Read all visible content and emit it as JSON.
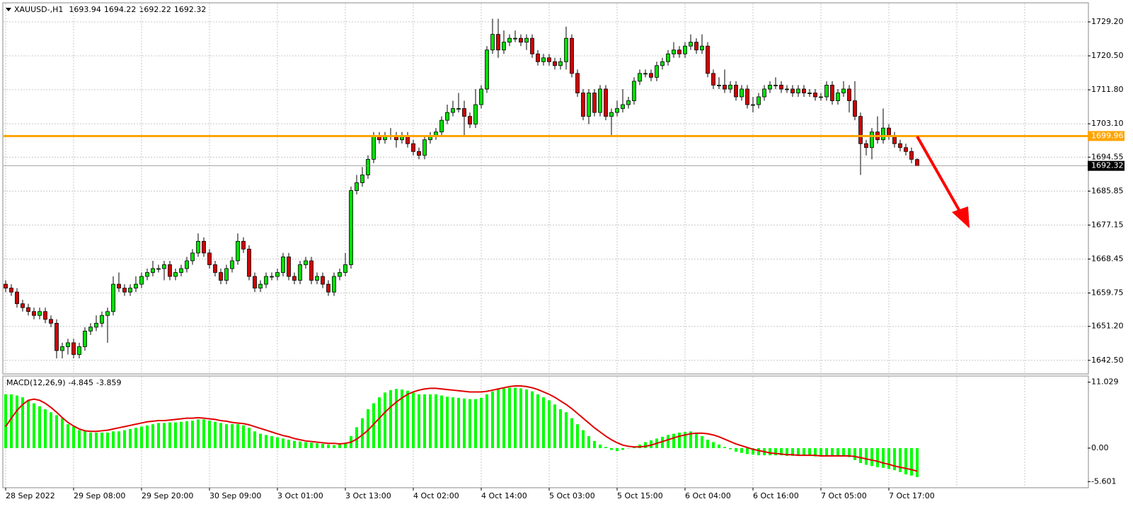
{
  "chart_data": [
    {
      "type": "candlestick",
      "symbol": "XAUUSD-,H1",
      "up_color": "#00e000",
      "down_color": "#d00000",
      "grid": true,
      "ylim": [
        1639.2,
        1733.9
      ],
      "yticks": [
        {
          "value": 1729.2,
          "label": "1729.20"
        },
        {
          "value": 1720.5,
          "label": "1720.50"
        },
        {
          "value": 1711.8,
          "label": "1711.80"
        },
        {
          "value": 1703.1,
          "label": "1703.10"
        },
        1694.55,
        1685.85,
        1677.15,
        1668.45,
        1659.75,
        {
          "value": 1651.2,
          "label": "1651.20"
        },
        {
          "value": 1642.5,
          "label": "1642.50"
        }
      ],
      "hline": {
        "value": 1699.96,
        "color": "#ffa500"
      },
      "categories": [
        "28 Sep 2022",
        null,
        null,
        null,
        null,
        null,
        null,
        null,
        null,
        null,
        null,
        null,
        "29 Sep 08:00",
        null,
        null,
        null,
        null,
        null,
        null,
        null,
        null,
        null,
        null,
        null,
        "29 Sep 20:00",
        null,
        null,
        null,
        null,
        null,
        null,
        null,
        null,
        null,
        null,
        null,
        "30 Sep 09:00",
        null,
        null,
        null,
        null,
        null,
        null,
        null,
        null,
        null,
        null,
        null,
        "3 Oct 01:00",
        null,
        null,
        null,
        null,
        null,
        null,
        null,
        null,
        null,
        null,
        null,
        "3 Oct 13:00",
        null,
        null,
        null,
        null,
        null,
        null,
        null,
        null,
        null,
        null,
        null,
        "4 Oct 02:00",
        null,
        null,
        null,
        null,
        null,
        null,
        null,
        null,
        null,
        null,
        null,
        "4 Oct 14:00",
        null,
        null,
        null,
        null,
        null,
        null,
        null,
        null,
        null,
        null,
        null,
        "5 Oct 03:00",
        null,
        null,
        null,
        null,
        null,
        null,
        null,
        null,
        null,
        null,
        null,
        "5 Oct 15:00",
        null,
        null,
        null,
        null,
        null,
        null,
        null,
        null,
        null,
        null,
        null,
        "6 Oct 04:00",
        null,
        null,
        null,
        null,
        null,
        null,
        null,
        null,
        null,
        null,
        null,
        "6 Oct 16:00",
        null,
        null,
        null,
        null,
        null,
        null,
        null,
        null,
        null,
        null,
        null,
        "7 Oct 05:00",
        null,
        null,
        null,
        null,
        null,
        null,
        null,
        null,
        null,
        null,
        null,
        "7 Oct 17:00",
        null,
        null,
        null,
        null,
        null
      ],
      "open": [
        1662,
        1661,
        1660,
        1657,
        1656,
        1655,
        1654,
        1655,
        1653,
        1652,
        1645,
        1646,
        1647,
        1644,
        1646,
        1650,
        1651,
        1652,
        1654,
        1655,
        1662,
        1661,
        1660,
        1661,
        1662,
        1664,
        1665,
        1666,
        1666,
        1667,
        1664,
        1665,
        1666,
        1668,
        1670,
        1673,
        1670,
        1667,
        1665,
        1663,
        1666,
        1668,
        1673,
        1671,
        1664,
        1661,
        1662,
        1664,
        1664,
        1665,
        1669,
        1664,
        1663,
        1667,
        1668,
        1663,
        1664,
        1662,
        1660,
        1664,
        1665,
        1667,
        1686,
        1688,
        1690,
        1694,
        1700,
        1699,
        1700,
        1700,
        1699,
        1700,
        1698,
        1696,
        1695,
        1699,
        1700,
        1701,
        1704,
        1706,
        1707,
        1707,
        1705,
        1703,
        1708,
        1712,
        1722,
        1726,
        1722,
        1724,
        1725,
        1725,
        1724,
        1725,
        1721,
        1719,
        1720,
        1719,
        1718,
        1719,
        1725,
        1716,
        1711,
        1705,
        1711,
        1706,
        1712,
        1705,
        1706,
        1707,
        1708,
        1709,
        1714,
        1716,
        1716,
        1715,
        1718,
        1719,
        1721,
        1722,
        1721,
        1723,
        1724,
        1722,
        1723,
        1716,
        1713,
        1713,
        1712,
        1713,
        1710,
        1712,
        1708,
        1708,
        1710,
        1712,
        1713,
        1713,
        1712,
        1712,
        1711,
        1712,
        1711,
        1711,
        1710,
        1710,
        1713,
        1709,
        1711,
        1712,
        1709,
        1705,
        1698,
        1697,
        1701,
        1699,
        1702,
        1700,
        1698,
        1697,
        1696,
        1693.94
      ],
      "high": [
        1663,
        1662,
        1661,
        1658,
        1657,
        1656,
        1656,
        1656,
        1654,
        1653,
        1647,
        1648,
        1648,
        1647,
        1651,
        1652,
        1654,
        1655,
        1656,
        1664,
        1665,
        1662,
        1662,
        1664,
        1665,
        1666,
        1668,
        1667,
        1668,
        1668,
        1666,
        1667,
        1669,
        1671,
        1675,
        1674,
        1671,
        1668,
        1666,
        1667,
        1669,
        1675,
        1674,
        1672,
        1665,
        1663,
        1665,
        1665,
        1666,
        1670,
        1670,
        1665,
        1668,
        1669,
        1669,
        1665,
        1665,
        1663,
        1665,
        1666,
        1670,
        1687,
        1690,
        1692,
        1695,
        1701,
        1701,
        1701,
        1702,
        1701,
        1701,
        1701,
        1699,
        1697,
        1700,
        1701,
        1702,
        1705,
        1708,
        1709,
        1711,
        1709,
        1706,
        1712,
        1713,
        1723,
        1730,
        1730,
        1727,
        1726,
        1727,
        1726,
        1726,
        1726,
        1722,
        1721,
        1721,
        1720,
        1720,
        1728,
        1726,
        1717,
        1712,
        1712,
        1712,
        1713,
        1713,
        1707,
        1709,
        1712,
        1710,
        1715,
        1717,
        1717,
        1717,
        1719,
        1720,
        1722,
        1724,
        1723,
        1724,
        1726,
        1725,
        1726,
        1724,
        1717,
        1715,
        1717,
        1714,
        1714,
        1713,
        1713,
        1710,
        1711,
        1713,
        1714,
        1715,
        1714,
        1713,
        1713,
        1713,
        1713,
        1712,
        1712,
        1711,
        1714,
        1714,
        1712,
        1714,
        1713,
        1714,
        1706,
        1699,
        1702,
        1705,
        1707,
        1703,
        1701,
        1699,
        1698,
        1697,
        1694.22
      ],
      "low": [
        1660,
        1659,
        1656,
        1655,
        1654,
        1653,
        1653,
        1652,
        1651,
        1643,
        1643,
        1644,
        1643,
        1643,
        1645,
        1649,
        1650,
        1651,
        1647,
        1654,
        1660,
        1659,
        1659,
        1660,
        1661,
        1663,
        1664,
        1665,
        1663,
        1663,
        1663,
        1664,
        1665,
        1667,
        1669,
        1669,
        1666,
        1664,
        1662,
        1662,
        1665,
        1667,
        1670,
        1663,
        1660,
        1660,
        1661,
        1663,
        1663,
        1664,
        1663,
        1662,
        1662,
        1666,
        1662,
        1662,
        1661,
        1659,
        1659,
        1663,
        1664,
        1666,
        1685,
        1687,
        1689,
        1693,
        1698,
        1698,
        1699,
        1697,
        1698,
        1697,
        1695,
        1694,
        1694,
        1698,
        1699,
        1700,
        1703,
        1705,
        1706,
        1700,
        1702,
        1702,
        1707,
        1711,
        1721,
        1720,
        1721,
        1723,
        1724,
        1723,
        1722,
        1720,
        1718,
        1718,
        1718,
        1717,
        1717,
        1717,
        1715,
        1710,
        1704,
        1703,
        1705,
        1705,
        1704,
        1700,
        1705,
        1706,
        1707,
        1708,
        1713,
        1715,
        1714,
        1714,
        1717,
        1718,
        1720,
        1720,
        1720,
        1722,
        1721,
        1721,
        1715,
        1712,
        1712,
        1711,
        1711,
        1709,
        1709,
        1707,
        1706,
        1707,
        1709,
        1711,
        1712,
        1711,
        1711,
        1710,
        1710,
        1710,
        1710,
        1709,
        1709,
        1709,
        1708,
        1708,
        1710,
        1706,
        1704,
        1690,
        1695,
        1694,
        1698,
        1698,
        1699,
        1697,
        1696,
        1695,
        1693,
        1692.22
      ],
      "close": [
        1661,
        1660,
        1657,
        1656,
        1655,
        1654,
        1655,
        1653,
        1652,
        1645,
        1646,
        1647,
        1644,
        1646,
        1650,
        1651,
        1652,
        1654,
        1655,
        1662,
        1661,
        1660,
        1661,
        1662,
        1664,
        1665,
        1666,
        1666,
        1667,
        1664,
        1665,
        1666,
        1668,
        1670,
        1673,
        1670,
        1667,
        1665,
        1663,
        1666,
        1668,
        1673,
        1671,
        1664,
        1661,
        1662,
        1664,
        1664,
        1665,
        1669,
        1664,
        1663,
        1667,
        1668,
        1663,
        1664,
        1662,
        1660,
        1664,
        1665,
        1667,
        1686,
        1688,
        1690,
        1694,
        1700,
        1699,
        1700,
        1700,
        1699,
        1700,
        1698,
        1696,
        1695,
        1699,
        1700,
        1701,
        1704,
        1706,
        1707,
        1707,
        1705,
        1703,
        1708,
        1712,
        1722,
        1726,
        1722,
        1724,
        1725,
        1725,
        1724,
        1725,
        1721,
        1719,
        1720,
        1719,
        1718,
        1719,
        1725,
        1716,
        1711,
        1705,
        1711,
        1706,
        1712,
        1705,
        1706,
        1707,
        1708,
        1709,
        1714,
        1716,
        1716,
        1715,
        1718,
        1719,
        1721,
        1722,
        1721,
        1723,
        1724,
        1722,
        1723,
        1716,
        1713,
        1713,
        1712,
        1713,
        1710,
        1712,
        1708,
        1708,
        1710,
        1712,
        1713,
        1713,
        1712,
        1712,
        1711,
        1712,
        1711,
        1711,
        1710,
        1710,
        1713,
        1709,
        1711,
        1712,
        1709,
        1705,
        1698,
        1697,
        1701,
        1699,
        1702,
        1700,
        1698,
        1697,
        1696,
        1694,
        1692.32
      ]
    },
    {
      "type": "macd",
      "title": "MACD(12,26,9)",
      "ylim": [
        -6.51,
        11.94
      ],
      "yticks": [
        11.029,
        {
          "value": 0,
          "label": "0.00"
        },
        -5.601
      ],
      "histogram": {
        "color": "#00ff00",
        "values": [
          9,
          9,
          8.8,
          8.5,
          8,
          7.5,
          7,
          6.5,
          6,
          5.5,
          5,
          4,
          3.6,
          3,
          2.8,
          2.6,
          2.6,
          2.6,
          2.6,
          2.8,
          2.8,
          3,
          3.2,
          3.4,
          3.6,
          3.8,
          4,
          4.2,
          4.2,
          4.3,
          4.3,
          4.4,
          4.5,
          4.6,
          4.8,
          4.8,
          4.6,
          4.4,
          4.2,
          4,
          4,
          4,
          3.8,
          3.4,
          2.8,
          2.4,
          2.2,
          2,
          1.8,
          1.6,
          1.4,
          1.2,
          1.1,
          1,
          0.9,
          0.8,
          0.7,
          0.6,
          0.5,
          0.6,
          0.8,
          2,
          3.5,
          5,
          6.5,
          7.5,
          8.5,
          9.3,
          9.7,
          9.9,
          9.8,
          9.6,
          9.3,
          9,
          9,
          9,
          9,
          8.8,
          8.6,
          8.5,
          8.4,
          8.3,
          8.2,
          8.2,
          8.4,
          9,
          9.5,
          9.8,
          10,
          10.1,
          10.1,
          10,
          9.8,
          9.5,
          9,
          8.5,
          8,
          7.3,
          6.5,
          6,
          5,
          4,
          3,
          2,
          1.2,
          0.6,
          0.2,
          -0.3,
          -0.5,
          -0.3,
          0,
          0.3,
          0.6,
          1,
          1.3,
          1.6,
          1.9,
          2.2,
          2.4,
          2.6,
          2.7,
          2.8,
          2.6,
          2,
          1.4,
          1,
          0.6,
          0.2,
          -0.2,
          -0.6,
          -0.8,
          -1,
          -1.1,
          -1.2,
          -1.2,
          -1.2,
          -1.2,
          -1.2,
          -1.3,
          -1.3,
          -1.3,
          -1.3,
          -1.3,
          -1.4,
          -1.4,
          -1.4,
          -1.4,
          -1.4,
          -1.4,
          -1.5,
          -2,
          -2.5,
          -2.8,
          -3,
          -3.2,
          -3.3,
          -3.5,
          -3.7,
          -4,
          -4.4,
          -4.6,
          -4.845
        ]
      },
      "signal": {
        "color": "#e00000",
        "values": [
          3.6,
          5,
          6.3,
          7.3,
          8,
          8.2,
          8,
          7.5,
          6.8,
          6,
          5.1,
          4.3,
          3.7,
          3.2,
          2.9,
          2.8,
          2.8,
          2.9,
          3,
          3.2,
          3.4,
          3.6,
          3.8,
          4,
          4.2,
          4.4,
          4.5,
          4.6,
          4.6,
          4.7,
          4.8,
          4.9,
          5,
          5,
          5.1,
          5,
          4.9,
          4.8,
          4.6,
          4.5,
          4.3,
          4.2,
          4.1,
          3.9,
          3.6,
          3.3,
          3,
          2.7,
          2.4,
          2.1,
          1.9,
          1.6,
          1.4,
          1.2,
          1.1,
          1,
          0.9,
          0.8,
          0.8,
          0.7,
          0.8,
          1,
          1.5,
          2.2,
          3,
          4,
          5,
          6,
          6.9,
          7.7,
          8.4,
          9,
          9.4,
          9.7,
          9.9,
          10,
          10,
          9.9,
          9.8,
          9.7,
          9.6,
          9.5,
          9.4,
          9.4,
          9.4,
          9.5,
          9.7,
          9.9,
          10.1,
          10.3,
          10.4,
          10.4,
          10.3,
          10.1,
          9.8,
          9.4,
          9,
          8.5,
          7.9,
          7.3,
          6.6,
          5.8,
          5,
          4.2,
          3.4,
          2.7,
          2,
          1.4,
          0.9,
          0.5,
          0.3,
          0.2,
          0.2,
          0.3,
          0.5,
          0.8,
          1.1,
          1.4,
          1.7,
          2,
          2.2,
          2.4,
          2.5,
          2.5,
          2.4,
          2.2,
          1.9,
          1.5,
          1.1,
          0.7,
          0.4,
          0.1,
          -0.2,
          -0.4,
          -0.6,
          -0.8,
          -0.9,
          -1,
          -1.1,
          -1.1,
          -1.2,
          -1.2,
          -1.2,
          -1.2,
          -1.3,
          -1.3,
          -1.3,
          -1.3,
          -1.3,
          -1.3,
          -1.4,
          -1.6,
          -1.8,
          -2,
          -2.2,
          -2.5,
          -2.7,
          -3,
          -3.2,
          -3.4,
          -3.6,
          -3.859
        ]
      }
    }
  ]
}
